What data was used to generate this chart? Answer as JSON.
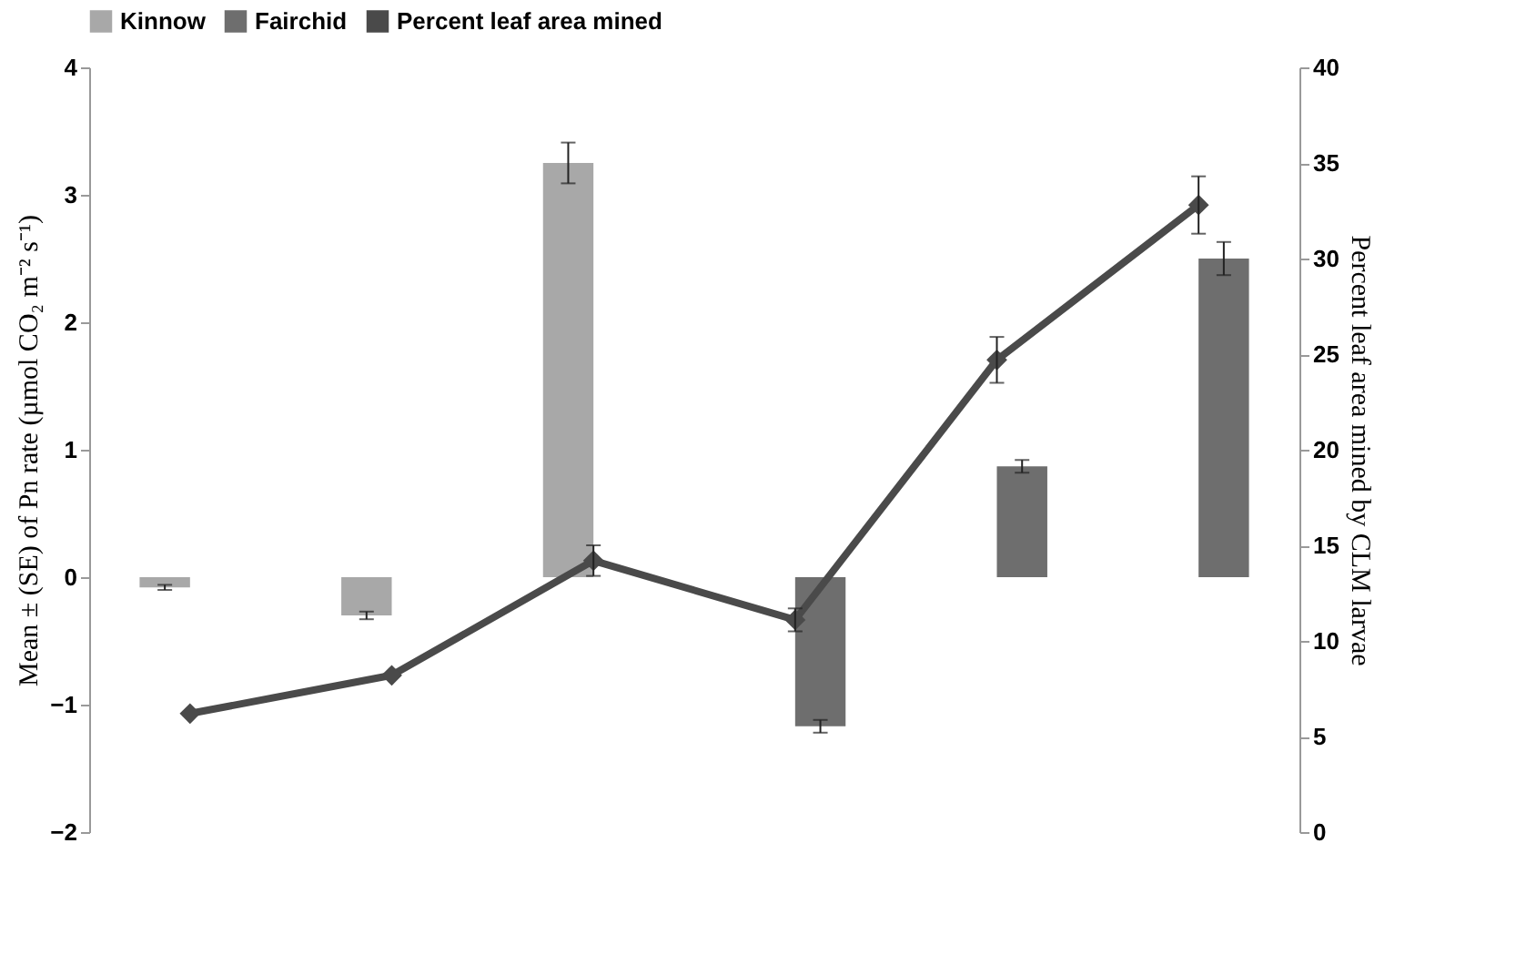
{
  "chart_data": {
    "type": "bar",
    "categories": [
      null,
      null,
      null,
      null,
      null,
      null
    ],
    "ylabel": "Mean ± (SE) of Pn rate (µmol CO₂ m⁻² s⁻¹)",
    "y2label": "Percent leaf area mined by CLM larvae",
    "ylim": [
      -2,
      4
    ],
    "yticks": [
      -2,
      -1,
      0,
      1,
      2,
      3,
      4
    ],
    "y2lim": [
      0,
      40
    ],
    "y2ticks": [
      0,
      5,
      10,
      15,
      20,
      25,
      30,
      35,
      40
    ],
    "legend": "top",
    "grid": false,
    "series": [
      {
        "name": "Kinnow",
        "color": "#a8a8a8",
        "values": [
          -0.08,
          -0.3,
          3.25,
          null,
          null,
          null
        ],
        "errors": [
          0.02,
          0.03,
          0.16,
          null,
          null,
          null
        ]
      },
      {
        "name": "Fairchid",
        "color": "#6e6e6e",
        "values": [
          null,
          null,
          null,
          -1.17,
          0.87,
          2.5
        ],
        "errors": [
          null,
          null,
          null,
          0.05,
          0.05,
          0.13
        ]
      },
      {
        "name": "Percent leaf area mined",
        "type": "line",
        "axis": "y2",
        "color": "#4a4a4a",
        "marker": "diamond",
        "values": [
          6.2,
          8.2,
          14.2,
          11.1,
          24.7,
          32.8
        ],
        "errors": [
          null,
          null,
          0.8,
          0.6,
          1.2,
          1.5
        ]
      }
    ]
  }
}
